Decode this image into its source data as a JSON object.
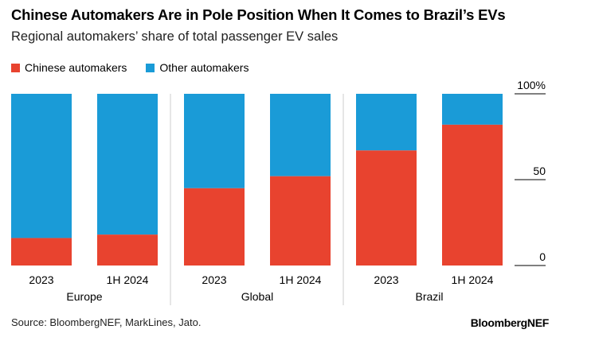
{
  "header": {
    "title": "Chinese Automakers Are in Pole Position When It Comes to Brazil’s EVs",
    "subtitle": "Regional automakers’ share of total passenger EV sales"
  },
  "footer": {
    "source": "Source: BloombergNEF, MarkLines, Jato.",
    "brand": "BloombergNEF"
  },
  "colors": {
    "chinese": "#e8432f",
    "other": "#1a9bd7"
  },
  "chart_data": {
    "type": "bar",
    "stacked": true,
    "categories": [
      "2023",
      "1H 2024",
      "2023",
      "1H 2024",
      "2023",
      "1H 2024"
    ],
    "groups": [
      {
        "label": "Europe",
        "categories": [
          "2023",
          "1H 2024"
        ]
      },
      {
        "label": "Global",
        "categories": [
          "2023",
          "1H 2024"
        ]
      },
      {
        "label": "Brazil",
        "categories": [
          "2023",
          "1H 2024"
        ]
      }
    ],
    "series": [
      {
        "name": "Chinese automakers",
        "values": [
          16,
          18,
          45,
          52,
          67,
          82
        ]
      },
      {
        "name": "Other automakers",
        "values": [
          84,
          82,
          55,
          48,
          33,
          18
        ]
      }
    ],
    "yticks": [
      "0",
      "50",
      "100%"
    ],
    "ylim": [
      0,
      100
    ],
    "legend_position": "top-left",
    "grid": false
  }
}
